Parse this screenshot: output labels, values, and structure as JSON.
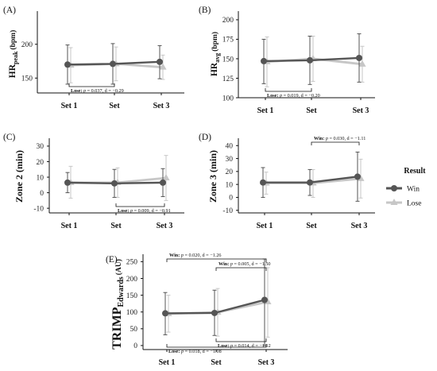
{
  "legend": {
    "title": "Result",
    "entries": [
      {
        "name": "Win",
        "color": "#555555",
        "marker": "circle"
      },
      {
        "name": "Lose",
        "color": "#c7c7c7",
        "marker": "triangle"
      }
    ]
  },
  "chart_data": [
    {
      "type": "line",
      "panel": "(A)",
      "ylabel": "HRpeak (bpm)",
      "ylabel_main": "HR",
      "ylabel_sub": "peak",
      "ylabel_unit": "(bpm)",
      "categories": [
        "Set 1",
        "Set",
        "Set 3"
      ],
      "ylim": [
        128,
        242
      ],
      "yticks": [
        150,
        200
      ],
      "series": [
        {
          "name": "Win",
          "values": [
            170,
            171,
            174
          ],
          "lower": [
            141,
            141,
            149
          ],
          "upper": [
            199,
            201,
            198
          ]
        },
        {
          "name": "Lose",
          "values": [
            169,
            171,
            166
          ],
          "lower": [
            143,
            146,
            148
          ],
          "upper": [
            195,
            196,
            184
          ]
        }
      ],
      "annotations": [
        {
          "text": "Lose: p = 0.037, d = −0.29",
          "from": 0,
          "to": 1,
          "side": "below",
          "level": 0
        }
      ]
    },
    {
      "type": "line",
      "panel": "(B)",
      "ylabel": "HRavg (bpm)",
      "ylabel_main": "HR",
      "ylabel_sub": "avg",
      "ylabel_unit": "(bpm)",
      "categories": [
        "Set 1",
        "Set",
        "Set 3"
      ],
      "ylim": [
        100,
        205
      ],
      "yticks": [
        100,
        125,
        150,
        175,
        200
      ],
      "series": [
        {
          "name": "Win",
          "values": [
            147,
            148,
            151
          ],
          "lower": [
            118,
            117,
            120
          ],
          "upper": [
            175,
            179,
            182
          ]
        },
        {
          "name": "Lose",
          "values": [
            146,
            150,
            143
          ],
          "lower": [
            114,
            121,
            120
          ],
          "upper": [
            178,
            179,
            166
          ]
        }
      ],
      "annotations": [
        {
          "text": "Lose: p = 0.019, d = −0.20",
          "from": 0,
          "to": 1,
          "side": "below",
          "level": 0
        }
      ]
    },
    {
      "type": "line",
      "panel": "(C)",
      "ylabel": "Zone 2 (min)",
      "categories": [
        "Set 1",
        "Set",
        "Set 3"
      ],
      "ylim": [
        -13,
        32
      ],
      "yticks": [
        -10,
        0,
        10,
        20,
        30
      ],
      "series": [
        {
          "name": "Win",
          "values": [
            6.5,
            6.0,
            6.5
          ],
          "lower": [
            0,
            -3,
            -2.5
          ],
          "upper": [
            13,
            15,
            15.5
          ]
        },
        {
          "name": "Lose",
          "values": [
            6.5,
            6.5,
            9.5
          ],
          "lower": [
            -3.5,
            -3,
            -5
          ],
          "upper": [
            17,
            16,
            24
          ]
        }
      ],
      "annotations": [
        {
          "text": "Lose: p = 0.009, d = −0.91",
          "from": 1,
          "to": 2,
          "side": "below",
          "level": 0
        }
      ]
    },
    {
      "type": "line",
      "panel": "(D)",
      "ylabel": "Zone 3 (min)",
      "categories": [
        "Set 1",
        "Set",
        "Set 3"
      ],
      "ylim": [
        -12,
        42
      ],
      "yticks": [
        -10,
        0,
        10,
        20,
        30,
        40
      ],
      "series": [
        {
          "name": "Win",
          "values": [
            11.5,
            11.5,
            16
          ],
          "lower": [
            0,
            1.5,
            -3
          ],
          "upper": [
            23,
            21.5,
            35
          ]
        },
        {
          "name": "Lose",
          "values": [
            11,
            11,
            14.5
          ],
          "lower": [
            2.5,
            0,
            -0.5
          ],
          "upper": [
            19.5,
            21.5,
            29.5
          ]
        }
      ],
      "annotations": [
        {
          "text": "Win: p = 0.030, d = −1.11",
          "from": 1,
          "to": 2,
          "side": "above",
          "level": 0
        }
      ]
    },
    {
      "type": "line",
      "panel": "(E)",
      "ylabel": "TRIMP Edwards (AU)",
      "ylabel_main": "TRIMP",
      "ylabel_sub": "Edwards",
      "ylabel_unit": "(AU)",
      "categories": [
        "Set 1",
        "Set",
        "Set 3"
      ],
      "ylim": [
        -12,
        258
      ],
      "yticks": [
        0,
        50,
        100,
        150,
        200,
        250
      ],
      "series": [
        {
          "name": "Win",
          "values": [
            96,
            97,
            136
          ],
          "lower": [
            32,
            30,
            0
          ],
          "upper": [
            158,
            165,
            258
          ]
        },
        {
          "name": "Lose",
          "values": [
            95,
            99,
            130
          ],
          "lower": [
            40,
            28,
            25
          ],
          "upper": [
            150,
            170,
            232
          ]
        }
      ],
      "annotations": [
        {
          "text": "Win: p = 0.020, d = −1.26",
          "from": 0,
          "to": 2,
          "side": "above",
          "level": 1
        },
        {
          "text": "Win: p = 0.005, d = −1.50",
          "from": 1,
          "to": 2,
          "side": "above",
          "level": 0
        },
        {
          "text": "Lose: p = 0.014, d = −1.12",
          "from": 1,
          "to": 2,
          "side": "below",
          "level": 0
        },
        {
          "text": "Lose: p = 0.018, d = −1.08",
          "from": 0,
          "to": 2,
          "side": "below",
          "level": 1
        }
      ]
    }
  ]
}
